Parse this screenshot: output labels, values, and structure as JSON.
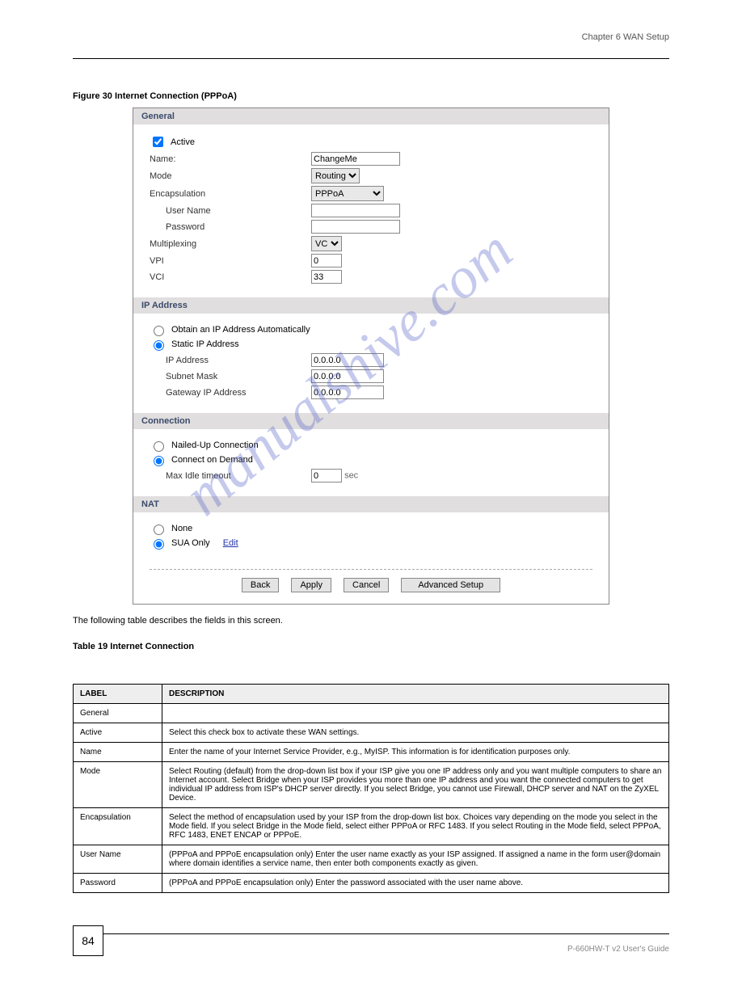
{
  "header_right": "Chapter 6 WAN Setup",
  "watermark": "manualshive.com",
  "figure_caption": "Figure 30   Internet Connection (PPPoA)",
  "intro_text": "The following table describes the fields in this screen.",
  "table_caption": "Table 19   Internet Connection",
  "page_number": "84",
  "footer_text": "P-660HW-T v2 User's Guide",
  "dialog": {
    "sections": {
      "general": {
        "title": "General",
        "active_label": "Active",
        "active_checked": true,
        "name_label": "Name:",
        "name_value": "ChangeMe",
        "mode_label": "Mode",
        "mode_value": "Routing",
        "encap_label": "Encapsulation",
        "encap_value": "PPPoA",
        "user_label": "User Name",
        "user_value": "",
        "pass_label": "Password",
        "pass_value": "",
        "mux_label": "Multiplexing",
        "mux_value": "VC",
        "vpi_label": "VPI",
        "vpi_value": "0",
        "vci_label": "VCI",
        "vci_value": "33"
      },
      "ip": {
        "title": "IP Address",
        "obtain_label": "Obtain an IP Address Automatically",
        "static_label": "Static IP Address",
        "selected": "static",
        "ip_label": "IP Address",
        "ip_value": "0.0.0.0",
        "mask_label": "Subnet Mask",
        "mask_value": "0.0.0.0",
        "gw_label": "Gateway IP Address",
        "gw_value": "0.0.0.0"
      },
      "conn": {
        "title": "Connection",
        "nailed_label": "Nailed-Up Connection",
        "demand_label": "Connect on Demand",
        "selected": "demand",
        "idle_label": "Max Idle timeout",
        "idle_value": "0",
        "idle_unit": "sec"
      },
      "nat": {
        "title": "NAT",
        "none_label": "None",
        "sua_label": "SUA Only",
        "selected": "sua",
        "edit_label": "Edit"
      }
    },
    "buttons": {
      "back": "Back",
      "apply": "Apply",
      "cancel": "Cancel",
      "adv": "Advanced Setup"
    }
  },
  "table": {
    "columns": [
      "LABEL",
      "DESCRIPTION"
    ],
    "rows": [
      [
        "General",
        ""
      ],
      [
        "Active",
        "Select this check box to activate these WAN settings."
      ],
      [
        "Name",
        "Enter the name of your Internet Service Provider, e.g., MyISP. This information is for identification purposes only."
      ],
      [
        "Mode",
        "Select Routing (default) from the drop-down list box if your ISP give you one IP address only and you want multiple computers to share an Internet account. Select Bridge when your ISP provides you more than one IP address and you want the connected computers to get individual IP address from ISP's DHCP server directly. If you select Bridge, you cannot use Firewall, DHCP server and NAT on the ZyXEL Device."
      ],
      [
        "Encapsulation",
        "Select the method of encapsulation used by your ISP from the drop-down list box. Choices vary depending on the mode you select in the Mode field.\nIf you select Bridge in the Mode field, select either PPPoA or RFC 1483.\nIf you select Routing in the Mode field, select PPPoA, RFC 1483, ENET ENCAP or PPPoE."
      ],
      [
        "User Name",
        "(PPPoA and PPPoE encapsulation only) Enter the user name exactly as your ISP assigned. If assigned a name in the form user@domain where domain identifies a service name, then enter both components exactly as given."
      ],
      [
        "Password",
        "(PPPoA and PPPoE encapsulation only) Enter the password associated with the user name above."
      ]
    ]
  }
}
